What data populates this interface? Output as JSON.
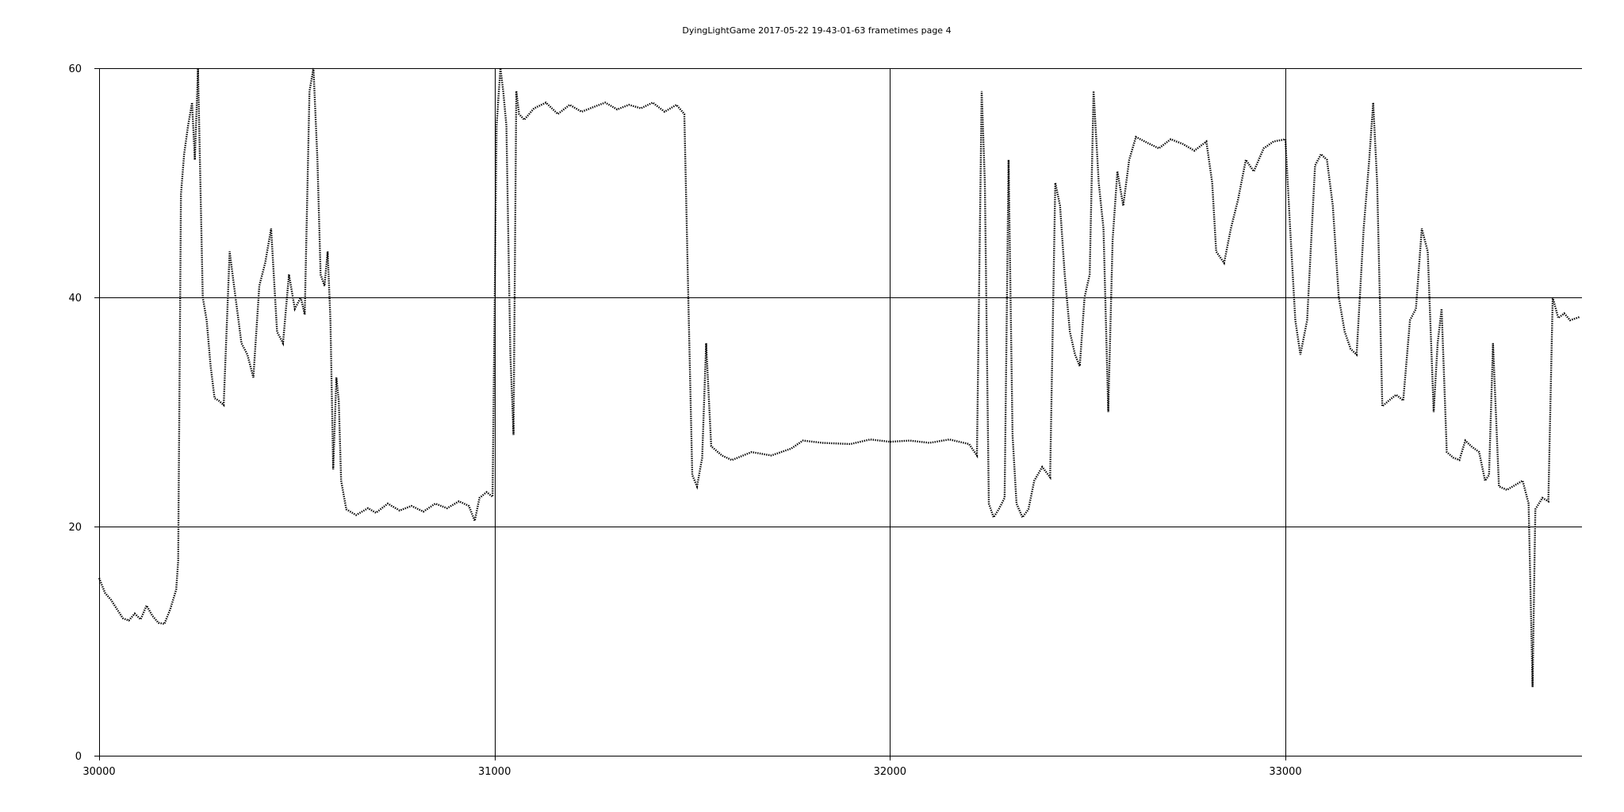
{
  "chart_data": {
    "type": "line",
    "title": "DyingLightGame 2017-05-22 19-43-01-63 frametimes page 4",
    "xlabel": "",
    "ylabel": "",
    "xlim": [
      30000,
      33750
    ],
    "ylim": [
      0,
      60
    ],
    "x_ticks": [
      30000,
      31000,
      32000,
      33000
    ],
    "y_ticks": [
      0,
      20,
      40,
      60
    ],
    "grid": true,
    "legend": "none",
    "series": [
      {
        "color": "#000000",
        "points": [
          [
            30000,
            15.5
          ],
          [
            30015,
            14.2
          ],
          [
            30030,
            13.6
          ],
          [
            30045,
            12.8
          ],
          [
            30060,
            12.0
          ],
          [
            30075,
            11.8
          ],
          [
            30090,
            12.4
          ],
          [
            30105,
            11.9
          ],
          [
            30120,
            13.1
          ],
          [
            30135,
            12.2
          ],
          [
            30150,
            11.6
          ],
          [
            30165,
            11.5
          ],
          [
            30180,
            12.8
          ],
          [
            30195,
            14.5
          ],
          [
            30200,
            17.0
          ],
          [
            30207,
            49.0
          ],
          [
            30215,
            52.5
          ],
          [
            30225,
            55.0
          ],
          [
            30235,
            57.0
          ],
          [
            30242,
            52.0
          ],
          [
            30250,
            60.0
          ],
          [
            30262,
            40.0
          ],
          [
            30272,
            38.0
          ],
          [
            30282,
            34.0
          ],
          [
            30292,
            31.2
          ],
          [
            30302,
            31.0
          ],
          [
            30315,
            30.6
          ],
          [
            30330,
            44.0
          ],
          [
            30345,
            40.0
          ],
          [
            30360,
            36.0
          ],
          [
            30375,
            35.0
          ],
          [
            30390,
            33.0
          ],
          [
            30405,
            41.0
          ],
          [
            30420,
            43.0
          ],
          [
            30435,
            46.0
          ],
          [
            30450,
            37.0
          ],
          [
            30465,
            36.0
          ],
          [
            30480,
            42.0
          ],
          [
            30495,
            39.0
          ],
          [
            30510,
            40.0
          ],
          [
            30520,
            38.5
          ],
          [
            30532,
            58.0
          ],
          [
            30542,
            60.0
          ],
          [
            30552,
            52.0
          ],
          [
            30560,
            42.0
          ],
          [
            30570,
            41.0
          ],
          [
            30578,
            44.0
          ],
          [
            30585,
            38.0
          ],
          [
            30592,
            25.0
          ],
          [
            30600,
            33.0
          ],
          [
            30606,
            31.0
          ],
          [
            30612,
            24.0
          ],
          [
            30625,
            21.5
          ],
          [
            30650,
            21.0
          ],
          [
            30680,
            21.6
          ],
          [
            30700,
            21.2
          ],
          [
            30730,
            22.0
          ],
          [
            30760,
            21.4
          ],
          [
            30790,
            21.8
          ],
          [
            30820,
            21.3
          ],
          [
            30850,
            22.0
          ],
          [
            30880,
            21.6
          ],
          [
            30910,
            22.2
          ],
          [
            30935,
            21.8
          ],
          [
            30950,
            20.5
          ],
          [
            30962,
            22.5
          ],
          [
            30980,
            23.0
          ],
          [
            30995,
            22.6
          ],
          [
            31005,
            55.0
          ],
          [
            31015,
            60.0
          ],
          [
            31022,
            58.0
          ],
          [
            31030,
            55.0
          ],
          [
            31040,
            35.0
          ],
          [
            31048,
            28.0
          ],
          [
            31055,
            58.0
          ],
          [
            31062,
            56.0
          ],
          [
            31075,
            55.5
          ],
          [
            31100,
            56.5
          ],
          [
            31130,
            57.0
          ],
          [
            31160,
            56.0
          ],
          [
            31190,
            56.8
          ],
          [
            31220,
            56.2
          ],
          [
            31250,
            56.6
          ],
          [
            31280,
            57.0
          ],
          [
            31310,
            56.4
          ],
          [
            31340,
            56.8
          ],
          [
            31370,
            56.5
          ],
          [
            31400,
            57.0
          ],
          [
            31430,
            56.2
          ],
          [
            31460,
            56.8
          ],
          [
            31480,
            56.0
          ],
          [
            31490,
            40.0
          ],
          [
            31500,
            24.5
          ],
          [
            31512,
            23.5
          ],
          [
            31525,
            26.0
          ],
          [
            31535,
            36.0
          ],
          [
            31548,
            27.0
          ],
          [
            31575,
            26.2
          ],
          [
            31600,
            25.8
          ],
          [
            31650,
            26.5
          ],
          [
            31700,
            26.2
          ],
          [
            31750,
            26.8
          ],
          [
            31780,
            27.5
          ],
          [
            31830,
            27.3
          ],
          [
            31900,
            27.2
          ],
          [
            31950,
            27.6
          ],
          [
            32000,
            27.4
          ],
          [
            32050,
            27.5
          ],
          [
            32100,
            27.3
          ],
          [
            32150,
            27.6
          ],
          [
            32200,
            27.2
          ],
          [
            32220,
            26.2
          ],
          [
            32232,
            58.0
          ],
          [
            32240,
            50.0
          ],
          [
            32250,
            22.0
          ],
          [
            32262,
            20.8
          ],
          [
            32275,
            21.5
          ],
          [
            32290,
            22.5
          ],
          [
            32300,
            52.0
          ],
          [
            32310,
            28.0
          ],
          [
            32320,
            22.0
          ],
          [
            32335,
            20.8
          ],
          [
            32350,
            21.5
          ],
          [
            32365,
            24.0
          ],
          [
            32385,
            25.2
          ],
          [
            32405,
            24.3
          ],
          [
            32418,
            50.0
          ],
          [
            32430,
            48.0
          ],
          [
            32442,
            42.0
          ],
          [
            32455,
            37.0
          ],
          [
            32468,
            35.0
          ],
          [
            32480,
            34.0
          ],
          [
            32492,
            40.0
          ],
          [
            32505,
            42.0
          ],
          [
            32515,
            58.0
          ],
          [
            32528,
            50.0
          ],
          [
            32540,
            46.0
          ],
          [
            32552,
            30.0
          ],
          [
            32563,
            45.0
          ],
          [
            32575,
            51.0
          ],
          [
            32590,
            48.0
          ],
          [
            32605,
            52.0
          ],
          [
            32622,
            54.0
          ],
          [
            32650,
            53.5
          ],
          [
            32680,
            53.0
          ],
          [
            32710,
            53.8
          ],
          [
            32740,
            53.4
          ],
          [
            32770,
            52.8
          ],
          [
            32800,
            53.6
          ],
          [
            32815,
            50.0
          ],
          [
            32825,
            44.0
          ],
          [
            32845,
            43.0
          ],
          [
            32862,
            46.0
          ],
          [
            32880,
            48.5
          ],
          [
            32900,
            52.0
          ],
          [
            32920,
            51.0
          ],
          [
            32945,
            53.0
          ],
          [
            32970,
            53.6
          ],
          [
            33000,
            53.8
          ],
          [
            33012,
            46.0
          ],
          [
            33025,
            38.0
          ],
          [
            33038,
            35.0
          ],
          [
            33055,
            38.0
          ],
          [
            33075,
            51.5
          ],
          [
            33090,
            52.5
          ],
          [
            33105,
            52.0
          ],
          [
            33120,
            48.0
          ],
          [
            33135,
            40.0
          ],
          [
            33150,
            37.0
          ],
          [
            33165,
            35.5
          ],
          [
            33180,
            35.0
          ],
          [
            33198,
            46.0
          ],
          [
            33212,
            52.0
          ],
          [
            33222,
            57.0
          ],
          [
            33232,
            50.0
          ],
          [
            33245,
            30.5
          ],
          [
            33262,
            31.0
          ],
          [
            33280,
            31.5
          ],
          [
            33298,
            31.0
          ],
          [
            33315,
            38.0
          ],
          [
            33330,
            39.0
          ],
          [
            33345,
            46.0
          ],
          [
            33360,
            44.0
          ],
          [
            33375,
            30.0
          ],
          [
            33385,
            36.0
          ],
          [
            33395,
            39.0
          ],
          [
            33408,
            26.5
          ],
          [
            33425,
            26.0
          ],
          [
            33440,
            25.8
          ],
          [
            33455,
            27.5
          ],
          [
            33470,
            27.0
          ],
          [
            33490,
            26.5
          ],
          [
            33505,
            24.0
          ],
          [
            33515,
            24.5
          ],
          [
            33525,
            36.0
          ],
          [
            33540,
            23.5
          ],
          [
            33560,
            23.2
          ],
          [
            33580,
            23.6
          ],
          [
            33600,
            24.0
          ],
          [
            33615,
            22.0
          ],
          [
            33625,
            6.0
          ],
          [
            33632,
            21.5
          ],
          [
            33650,
            22.5
          ],
          [
            33665,
            22.2
          ],
          [
            33676,
            40.0
          ],
          [
            33690,
            38.2
          ],
          [
            33705,
            38.6
          ],
          [
            33720,
            38.0
          ],
          [
            33745,
            38.3
          ]
        ]
      }
    ]
  }
}
